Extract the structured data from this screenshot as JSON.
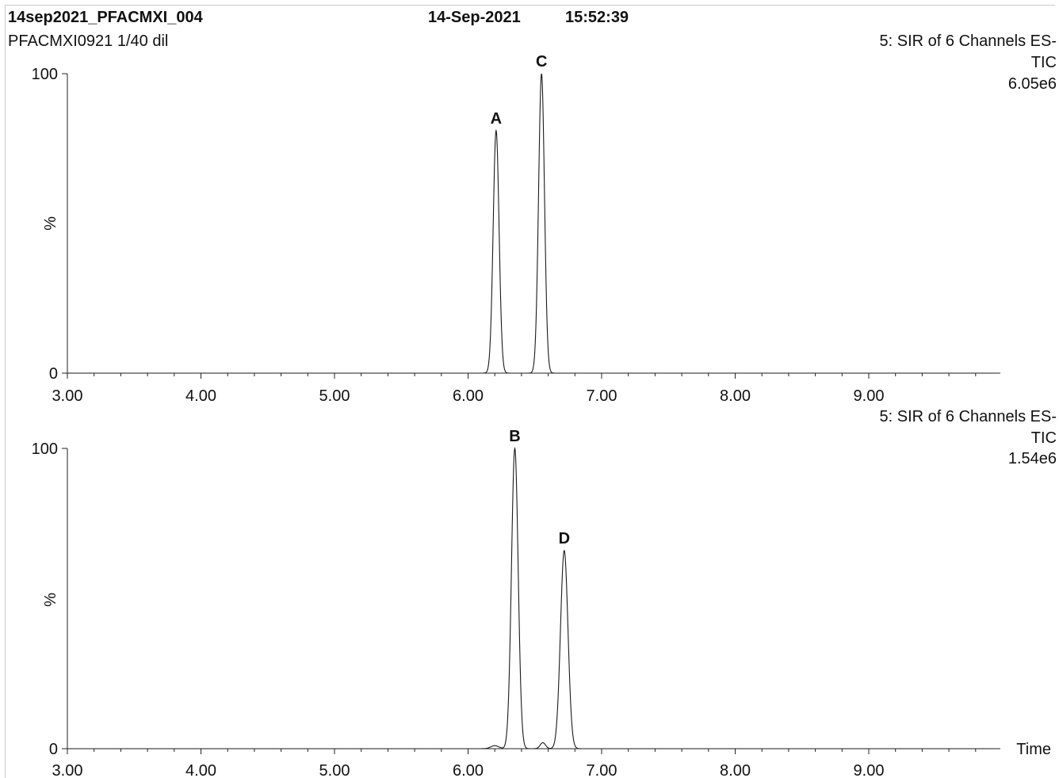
{
  "header": {
    "filename": "14sep2021_PFACMXI_004",
    "date": "14-Sep-2021",
    "time": "15:52:39",
    "sample": "PFACMXI0921 1/40 dil"
  },
  "colors": {
    "trace": "#1a1a1a",
    "axis": "#222222",
    "text": "#111111"
  },
  "chart_data": [
    {
      "type": "line",
      "channel": "5: SIR of 6 Channels ES-",
      "trace": "TIC",
      "max_intensity": "6.05e6",
      "ylabel": "%",
      "ylim": [
        0,
        100
      ],
      "y_ticks": [
        "0",
        "100"
      ],
      "xlim": [
        3.0,
        10.0
      ],
      "x_ticks": [
        "3.00",
        "4.00",
        "5.00",
        "6.00",
        "7.00",
        "8.00",
        "9.00"
      ],
      "peaks": [
        {
          "label": "A",
          "rt": 6.21,
          "height": 81,
          "width": 0.022
        },
        {
          "label": "C",
          "rt": 6.55,
          "height": 100,
          "width": 0.022
        }
      ]
    },
    {
      "type": "line",
      "channel": "5: SIR of 6 Channels ES-",
      "trace": "TIC",
      "max_intensity": "1.54e6",
      "ylabel": "%",
      "ylim": [
        0,
        100
      ],
      "y_ticks": [
        "0",
        "100"
      ],
      "xlim": [
        3.0,
        10.0
      ],
      "x_ticks": [
        "3.00",
        "4.00",
        "5.00",
        "6.00",
        "7.00",
        "8.00",
        "9.00"
      ],
      "xlabel": "Time",
      "peaks": [
        {
          "label": "",
          "rt": 6.2,
          "height": 1,
          "width": 0.03
        },
        {
          "label": "B",
          "rt": 6.35,
          "height": 100,
          "width": 0.025
        },
        {
          "label": "",
          "rt": 6.56,
          "height": 2,
          "width": 0.02
        },
        {
          "label": "D",
          "rt": 6.72,
          "height": 66,
          "width": 0.028
        }
      ]
    }
  ]
}
